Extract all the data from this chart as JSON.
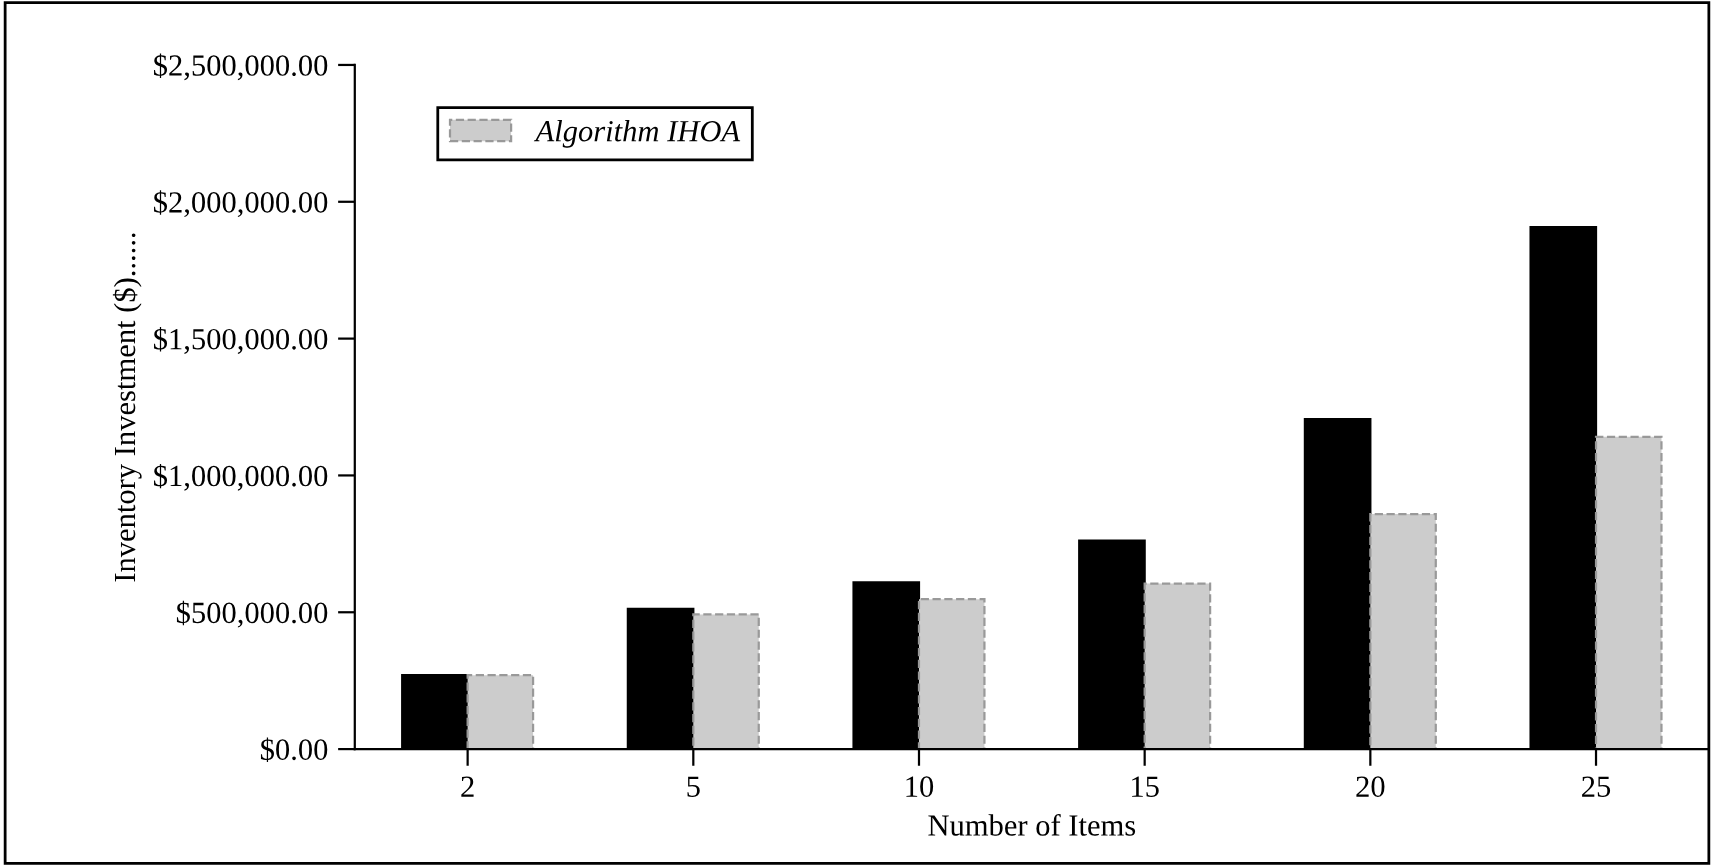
{
  "chart_data": {
    "type": "bar",
    "xlabel": "Number of Items",
    "ylabel": "Inventory Investment ($)......",
    "categories": [
      "2",
      "5",
      "10",
      "15",
      "20",
      "25"
    ],
    "series": [
      {
        "color": "#000000",
        "values": [
          270000,
          512000,
          609000,
          762000,
          1206000,
          1907000
        ]
      },
      {
        "name": "Algorithm IHOA",
        "color": "#cccccc",
        "values": [
          270000,
          492000,
          548000,
          605000,
          859000,
          1141000
        ]
      }
    ],
    "ylim": [
      0,
      2500000
    ],
    "yticks": [
      {
        "value": 0,
        "label": "$0.00"
      },
      {
        "value": 500000,
        "label": "$500,000.00"
      },
      {
        "value": 1000000,
        "label": "$1,000,000.00"
      },
      {
        "value": 1500000,
        "label": "$1,500,000.00"
      },
      {
        "value": 2000000,
        "label": "$2,000,000.00"
      },
      {
        "value": 2500000,
        "label": "$2,500,000.00"
      }
    ],
    "grid": false,
    "legend": "top left"
  }
}
